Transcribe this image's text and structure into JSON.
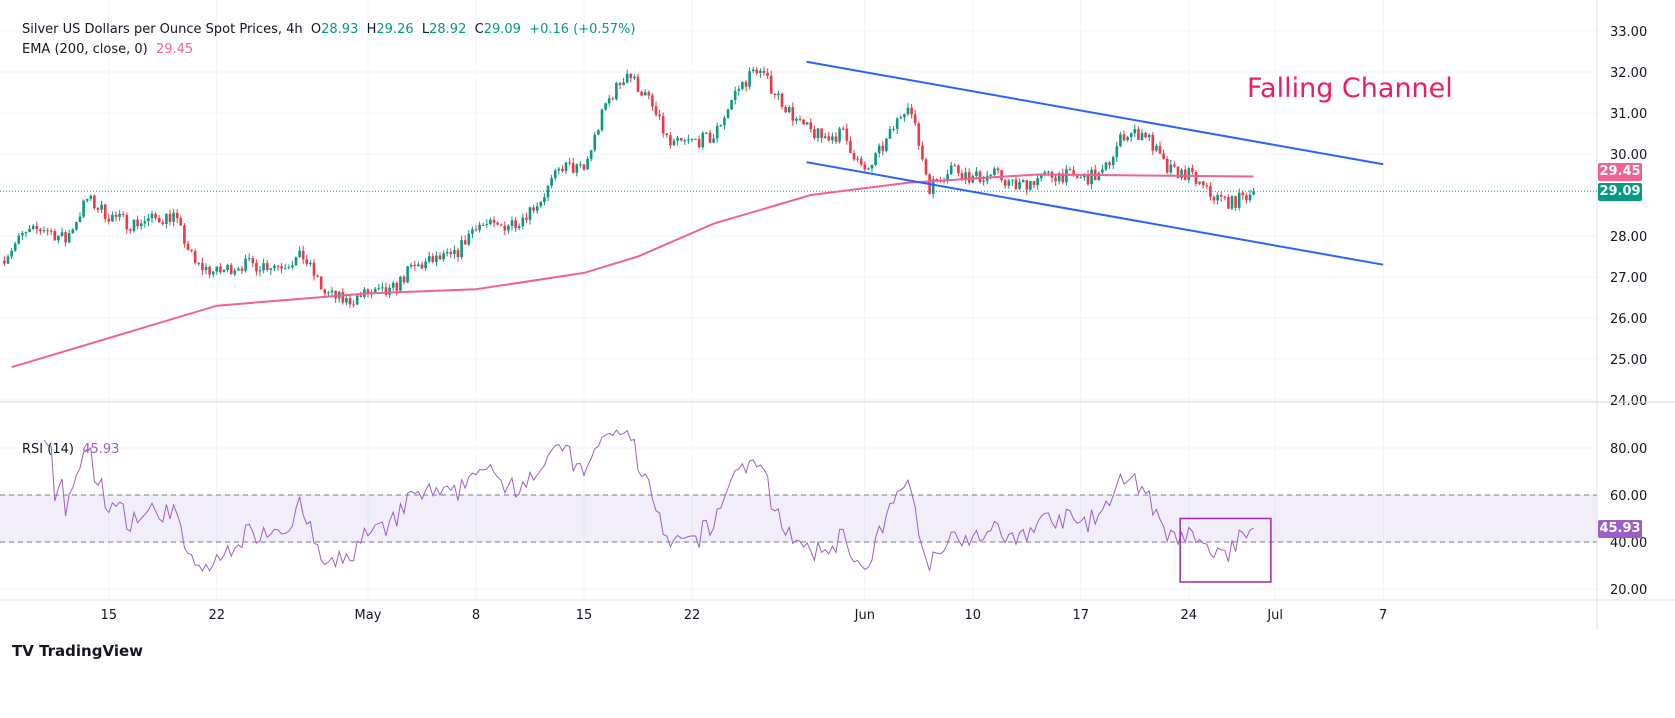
{
  "header": {
    "title": "Silver US Dollars per Ounce Spot Prices, 4h",
    "o_label": "O",
    "o": "28.93",
    "h_label": "H",
    "h": "29.26",
    "l_label": "L",
    "l": "28.92",
    "c_label": "C",
    "c": "29.09",
    "change": "+0.16 (+0.57%)",
    "ema_label": "EMA (200, close, 0)",
    "ema_value": "29.45",
    "rsi_label": "RSI (14)",
    "rsi_value": "45.93"
  },
  "annotation": "Falling Channel",
  "brand": "TradingView",
  "colors": {
    "up": "#089981",
    "down": "#f23645",
    "ema": "#f06292",
    "channel": "#2962ff",
    "rsi": "#9c5fc7",
    "annotation": "#e91e63"
  },
  "chart_data": {
    "type": "candlestick",
    "timeframe": "4h",
    "price_axis": {
      "ticks": [
        "33.00",
        "32.00",
        "31.00",
        "30.00",
        "28.00",
        "27.00",
        "26.00",
        "25.00",
        "24.00"
      ],
      "range": [
        24,
        33
      ]
    },
    "rsi_axis": {
      "ticks": [
        "80.00",
        "60.00",
        "40.00",
        "20.00"
      ],
      "bands": [
        40,
        60
      ]
    },
    "x_ticks": [
      {
        "label": "15",
        "day": 3
      },
      {
        "label": "22",
        "day": 8
      },
      {
        "label": "May",
        "day": 15
      },
      {
        "label": "8",
        "day": 20
      },
      {
        "label": "15",
        "day": 25
      },
      {
        "label": "22",
        "day": 30
      },
      {
        "label": "Jun",
        "day": 38
      },
      {
        "label": "10",
        "day": 43
      },
      {
        "label": "17",
        "day": 48
      },
      {
        "label": "24",
        "day": 53
      },
      {
        "label": "Jul",
        "day": 57
      },
      {
        "label": "7",
        "day": 62
      }
    ],
    "daily_closes": [
      27.4,
      28.0,
      28.2,
      27.9,
      28.9,
      28.5,
      28.3,
      28.4,
      28.5,
      27.3,
      27.1,
      27.3,
      27.3,
      27.3,
      27.5,
      26.6,
      26.4,
      26.6,
      26.6,
      27.2,
      27.4,
      27.5,
      28.3,
      28.2,
      28.4,
      28.9,
      29.7,
      29.6,
      31.2,
      32.0,
      31.3,
      30.2,
      30.3,
      30.4,
      31.5,
      32.1,
      31.4,
      30.7,
      30.4,
      30.5,
      29.5,
      30.3,
      31.3,
      29.2,
      29.7,
      29.4,
      29.5,
      29.2,
      29.4,
      29.5,
      29.4,
      29.5,
      30.5,
      30.5,
      29.6,
      29.5,
      29.0,
      28.8,
      29.09
    ],
    "first_day": -2,
    "ema_points": [
      [
        -1.5,
        24.8
      ],
      [
        8,
        26.3
      ],
      [
        15,
        26.6
      ],
      [
        20,
        26.7
      ],
      [
        25,
        27.1
      ],
      [
        27.5,
        27.5
      ],
      [
        31,
        28.3
      ],
      [
        35.5,
        29.0
      ],
      [
        40,
        29.3
      ],
      [
        46,
        29.5
      ],
      [
        56,
        29.45
      ]
    ],
    "last_price": 29.09,
    "ema_last": 29.45,
    "rsi_last": 45.93,
    "channel": {
      "upper": [
        [
          35.3,
          32.25
        ],
        [
          62,
          29.75
        ]
      ],
      "lower": [
        [
          35.3,
          29.8
        ],
        [
          62,
          27.3
        ]
      ]
    },
    "rsi_box": {
      "day_range": [
        52.6,
        56.8
      ],
      "rsi_range": [
        23,
        50
      ]
    }
  }
}
